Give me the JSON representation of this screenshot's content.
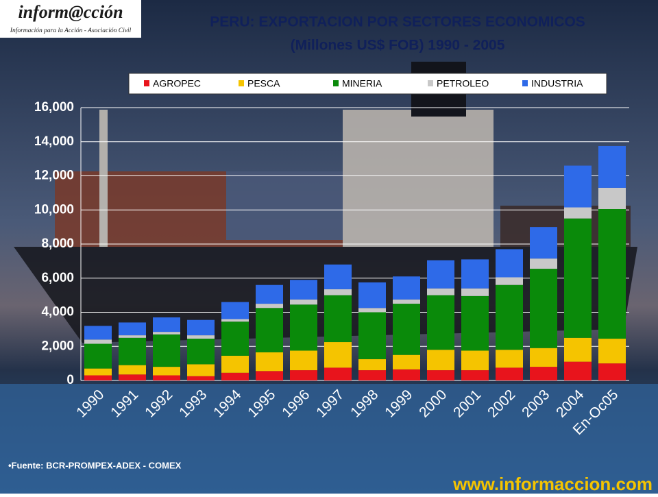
{
  "chart_data": {
    "type": "stacked_bar",
    "logo": "inform@cción",
    "logo_tagline": "Información para la Acción - Asociación Civil",
    "title": "PERU: EXPORTACION POR SECTORES ECONOMICOS",
    "subtitle": "(Millones US$ FOB) 1990 - 2005",
    "source": "•Fuente: BCR-PROMPEX-ADEX - COMEX",
    "website": "www.informaccion.com",
    "categories": [
      "1990",
      "1991",
      "1992",
      "1993",
      "1994",
      "1995",
      "1996",
      "1997",
      "1998",
      "1999",
      "2000",
      "2001",
      "2002",
      "2003",
      "2004",
      "En-Oc05"
    ],
    "series": [
      {
        "name": "AGROPEC",
        "color": "#e8141c",
        "values": [
          300,
          350,
          300,
          250,
          450,
          550,
          600,
          750,
          600,
          650,
          600,
          600,
          750,
          800,
          1100,
          1000
        ]
      },
      {
        "name": "PESCA",
        "color": "#f5c400",
        "values": [
          400,
          550,
          500,
          700,
          1000,
          1100,
          1150,
          1500,
          650,
          850,
          1200,
          1150,
          1050,
          1100,
          1400,
          1450
        ]
      },
      {
        "name": "MINERIA",
        "color": "#0a8a0a",
        "values": [
          1450,
          1600,
          1900,
          1500,
          2000,
          2600,
          2700,
          2750,
          2750,
          3000,
          3200,
          3200,
          3800,
          4650,
          7000,
          7600
        ]
      },
      {
        "name": "PETROLEO",
        "color": "#c8c8c8",
        "values": [
          250,
          150,
          150,
          200,
          150,
          250,
          300,
          350,
          250,
          250,
          400,
          450,
          450,
          600,
          650,
          1250
        ]
      },
      {
        "name": "INDUSTRIA",
        "color": "#2e6ae8",
        "values": [
          800,
          750,
          850,
          900,
          1000,
          1100,
          1150,
          1450,
          1500,
          1350,
          1650,
          1700,
          1650,
          1850,
          2450,
          2450
        ]
      }
    ],
    "ylim": [
      0,
      16000
    ],
    "yticks": [
      0,
      {
        "value": 2000,
        "label": "2,000"
      },
      {
        "value": 4000,
        "label": "4,000"
      },
      {
        "value": 6000,
        "label": "6,000"
      },
      {
        "value": 8000,
        "label": "8,000"
      },
      {
        "value": 10000,
        "label": "10,000"
      },
      {
        "value": 12000,
        "label": "12,000"
      },
      {
        "value": 14000,
        "label": "14,000"
      },
      {
        "value": 16000,
        "label": "16,000"
      }
    ],
    "grid": true
  }
}
